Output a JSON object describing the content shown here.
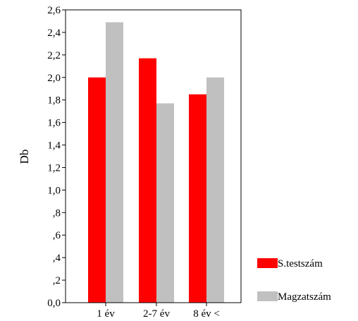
{
  "chart_data": {
    "type": "bar",
    "title": "",
    "xlabel": "",
    "ylabel": "Db",
    "ylim": [
      0,
      2.6
    ],
    "yticks": [
      0,
      0.2,
      0.4,
      0.6,
      0.8,
      1.0,
      1.2,
      1.4,
      1.6,
      1.8,
      2.0,
      2.2,
      2.4,
      2.6
    ],
    "ytick_labels": [
      "0,0",
      ",2",
      ",4",
      ",6",
      ",8",
      "1,0",
      "1,2",
      "1,4",
      "1,6",
      "1,8",
      "2,0",
      "2,2",
      "2,4",
      "2,6"
    ],
    "categories": [
      "1 év",
      "2-7 év",
      "8 év <"
    ],
    "series": [
      {
        "name": "S.testszám",
        "color": "#ff0000",
        "values": [
          2.0,
          2.17,
          1.85
        ]
      },
      {
        "name": "Magzatszám",
        "color": "#c0c0c0",
        "values": [
          2.49,
          1.77,
          2.0
        ]
      }
    ],
    "grid": false,
    "legend_position": "right"
  }
}
